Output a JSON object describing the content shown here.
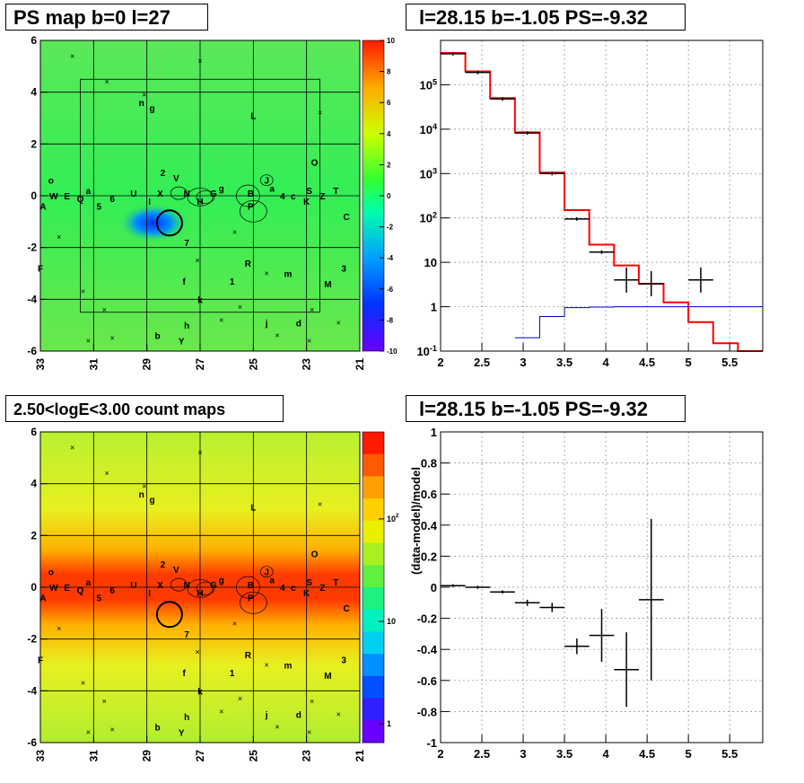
{
  "titles": {
    "ps_map": "PS map b=0 l=27",
    "spectrum": "l=28.15 b=-1.05 PS=-9.32",
    "count_map": "2.50<logE<3.00 count maps",
    "residual": "l=28.15 b=-1.05 PS=-9.32"
  },
  "colors": {
    "data": "#000000",
    "model": "#ff0000",
    "background": "#0000cc",
    "grid": "#888888"
  },
  "source_labels": [
    "A",
    "W",
    "E",
    "Q",
    "a",
    "5",
    "6",
    "U",
    "I",
    "X",
    "N",
    "H",
    "G",
    "g",
    "B",
    "P",
    "J",
    "a",
    "4",
    "c",
    "S",
    "K",
    "Z",
    "T",
    "C",
    "O",
    "L",
    "V",
    "2",
    "n",
    "g",
    "7",
    "F",
    "f",
    "1",
    "R",
    "m",
    "3",
    "M",
    "k",
    "h",
    "b",
    "Y",
    "j",
    "d",
    "o"
  ],
  "chart_data": [
    {
      "type": "heatmap",
      "title": "PS map b=0 l=27",
      "xlabel": "",
      "ylabel": "",
      "x_ticks": [
        "33",
        "31",
        "29",
        "27",
        "25",
        "23",
        "21"
      ],
      "y_ticks": [
        "6",
        "4",
        "2",
        "0",
        "-2",
        "-4",
        "-6"
      ],
      "xlim": [
        33,
        21
      ],
      "ylim": [
        -6,
        6
      ],
      "colorbar": {
        "min": -10,
        "max": 10,
        "ticks": [
          "10",
          "8",
          "6",
          "4",
          "2",
          "0",
          "-2",
          "-4",
          "-6",
          "-8",
          "-10"
        ]
      },
      "annotations": [
        {
          "type": "circle",
          "l": 28.15,
          "b": -1.05
        }
      ],
      "grid": true
    },
    {
      "type": "line",
      "title": "l=28.15 b=-1.05 PS=-9.32",
      "xlabel": "",
      "ylabel": "",
      "xlim": [
        2,
        5.9
      ],
      "ylim": [
        0.1,
        1000000
      ],
      "log_y": true,
      "x_ticks": [
        "2",
        "2.5",
        "3",
        "3.5",
        "4",
        "4.5",
        "5",
        "5.5"
      ],
      "y_ticks": [
        "10^-1",
        "1",
        "10",
        "10^2",
        "10^3",
        "10^4",
        "10^5"
      ],
      "grid": true,
      "series": [
        {
          "style": "step",
          "color": "#ff0000",
          "edges": [
            2.0,
            2.3,
            2.6,
            2.9,
            3.2,
            3.5,
            3.8,
            4.1,
            4.4,
            4.7,
            5.0,
            5.3,
            5.6,
            5.9
          ],
          "values": [
            520000,
            200000,
            50000,
            8500,
            1050,
            150,
            25,
            8.5,
            3.3,
            1.25,
            0.45,
            0.15,
            0.1
          ]
        },
        {
          "style": "step",
          "color": "#0000cc",
          "edges": [
            2.9,
            3.2,
            3.5,
            3.8,
            4.1,
            4.4,
            4.7,
            5.0,
            5.3,
            5.6,
            5.9
          ],
          "values": [
            0.2,
            0.6,
            0.95,
            0.98,
            1.0,
            1.0,
            1.0,
            1.0,
            1.0,
            1.0
          ]
        },
        {
          "style": "points",
          "color": "#000000",
          "x": [
            2.15,
            2.45,
            2.75,
            3.05,
            3.35,
            3.65,
            3.95,
            4.25,
            4.55,
            5.15
          ],
          "y": [
            500000,
            190000,
            48000,
            8200,
            1000,
            95,
            17,
            4,
            3.3,
            4
          ],
          "xerr": 0.15
        }
      ]
    },
    {
      "type": "heatmap",
      "title": "2.50<logE<3.00 count maps",
      "xlabel": "",
      "ylabel": "",
      "x_ticks": [
        "33",
        "31",
        "29",
        "27",
        "25",
        "23",
        "21"
      ],
      "y_ticks": [
        "6",
        "4",
        "2",
        "0",
        "-2",
        "-4",
        "-6"
      ],
      "xlim": [
        33,
        21
      ],
      "ylim": [
        -6,
        6
      ],
      "colorbar": {
        "log": true,
        "ticks": [
          "10^2",
          "10",
          "1"
        ]
      },
      "annotations": [
        {
          "type": "circle",
          "l": 28.15,
          "b": -1.05
        }
      ],
      "grid": true
    },
    {
      "type": "scatter",
      "title": "l=28.15 b=-1.05 PS=-9.32",
      "xlabel": "",
      "ylabel": "(data-model)/model",
      "xlim": [
        2,
        5.9
      ],
      "ylim": [
        -1,
        1
      ],
      "x_ticks": [
        "2",
        "2.5",
        "3",
        "3.5",
        "4",
        "4.5",
        "5",
        "5.5"
      ],
      "y_ticks": [
        "1",
        "0.8",
        "0.6",
        "0.4",
        "0.2",
        "0",
        "-0.2",
        "-0.4",
        "-0.6",
        "-0.8",
        "-1"
      ],
      "grid": true,
      "series": [
        {
          "color": "#000000",
          "x": [
            2.15,
            2.45,
            2.75,
            3.05,
            3.35,
            3.65,
            3.95,
            4.25,
            4.55
          ],
          "y": [
            0.01,
            0.0,
            -0.03,
            -0.1,
            -0.13,
            -0.38,
            -0.31,
            -0.53,
            -0.08
          ],
          "yerr": [
            0.01,
            0.01,
            0.01,
            0.02,
            0.03,
            0.05,
            0.17,
            0.24,
            0.52
          ],
          "xerr": 0.15
        }
      ]
    }
  ]
}
